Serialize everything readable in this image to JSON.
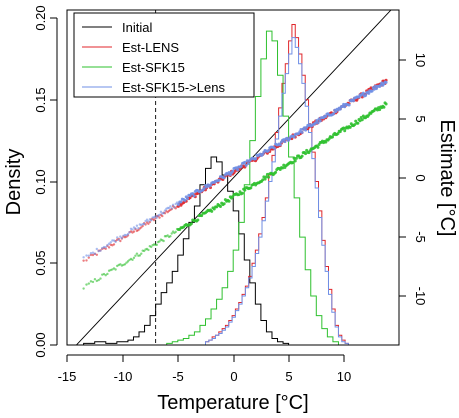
{
  "chart_data": {
    "type": "line",
    "xlabel": "Temperature [°C]",
    "ylabel_left": "Density",
    "ylabel_right": "Estimate [°C]",
    "xlim": [
      -15,
      14.5
    ],
    "ylim_left": [
      0,
      0.2
    ],
    "ylim_right": [
      -10,
      10
    ],
    "xticks": [
      "-15",
      "-10",
      "-5",
      "0",
      "5",
      "10"
    ],
    "yticks_left": [
      "0.00",
      "0.05",
      "0.10",
      "0.15",
      "0.20"
    ],
    "yticks_right": [
      "-10",
      "-5",
      "0",
      "5",
      "10"
    ],
    "reference_vline_x": -7,
    "grid": false,
    "legend_position": "top-left",
    "legend": [
      {
        "name": "Initial",
        "color": "#000000"
      },
      {
        "name": "Est-LENS",
        "color": "#e0262b"
      },
      {
        "name": "Est-SFK15",
        "color": "#2ec02e"
      },
      {
        "name": "Est-SFK15->Lens",
        "color": "#6f8fe6"
      }
    ],
    "histograms": [
      {
        "name": "Initial",
        "color": "#000000",
        "x0": -13.5,
        "bin_width": 0.5,
        "density": [
          0.001,
          0.001,
          0.002,
          0.002,
          0.001,
          0.001,
          0.002,
          0.002,
          0.003,
          0.005,
          0.008,
          0.012,
          0.018,
          0.025,
          0.032,
          0.038,
          0.045,
          0.055,
          0.065,
          0.075,
          0.085,
          0.098,
          0.108,
          0.115,
          0.112,
          0.104,
          0.094,
          0.082,
          0.068,
          0.052,
          0.038,
          0.025,
          0.015,
          0.008,
          0.004,
          0.002,
          0.001
        ]
      },
      {
        "name": "Est-LENS",
        "color": "#e0262b",
        "x0": -2.5,
        "bin_width": 0.3,
        "density": [
          0.002,
          0.003,
          0.005,
          0.006,
          0.008,
          0.01,
          0.012,
          0.015,
          0.018,
          0.022,
          0.026,
          0.031,
          0.036,
          0.042,
          0.05,
          0.058,
          0.068,
          0.078,
          0.09,
          0.104,
          0.116,
          0.13,
          0.145,
          0.16,
          0.172,
          0.186,
          0.196,
          0.188,
          0.178,
          0.165,
          0.15,
          0.135,
          0.118,
          0.1,
          0.082,
          0.064,
          0.048,
          0.034,
          0.022,
          0.012,
          0.006,
          0.003,
          0.001
        ]
      },
      {
        "name": "Est-SFK15",
        "color": "#2ec02e",
        "x0": -6,
        "bin_width": 0.5,
        "density": [
          0.001,
          0.002,
          0.003,
          0.004,
          0.006,
          0.008,
          0.012,
          0.016,
          0.022,
          0.028,
          0.035,
          0.045,
          0.058,
          0.075,
          0.098,
          0.125,
          0.152,
          0.175,
          0.192,
          0.186,
          0.165,
          0.14,
          0.115,
          0.09,
          0.066,
          0.046,
          0.03,
          0.018,
          0.01,
          0.005,
          0.002
        ]
      },
      {
        "name": "Est-SFK15->Lens",
        "color": "#6f8fe6",
        "x0": -2.5,
        "bin_width": 0.3,
        "density": [
          0.002,
          0.003,
          0.004,
          0.006,
          0.007,
          0.009,
          0.011,
          0.014,
          0.017,
          0.021,
          0.025,
          0.03,
          0.035,
          0.041,
          0.048,
          0.056,
          0.066,
          0.076,
          0.088,
          0.1,
          0.112,
          0.126,
          0.14,
          0.154,
          0.166,
          0.178,
          0.188,
          0.182,
          0.172,
          0.16,
          0.146,
          0.13,
          0.114,
          0.096,
          0.078,
          0.061,
          0.045,
          0.031,
          0.02,
          0.011,
          0.005,
          0.002,
          0.001
        ]
      }
    ],
    "estimates": [
      {
        "name": "Est-LENS",
        "color": "#e0262b",
        "x_range": [
          -13.5,
          13.8
        ],
        "intercept": 0.5,
        "slope": 0.56,
        "n_points": 240
      },
      {
        "name": "Est-SFK15",
        "color": "#2ec02e",
        "x_range": [
          -13.5,
          13.8
        ],
        "intercept": -1.6,
        "slope": 0.57,
        "n_points": 240
      },
      {
        "name": "Est-SFK15->Lens",
        "color": "#6f8fe6",
        "x_range": [
          -13.5,
          13.8
        ],
        "intercept": 0.6,
        "slope": 0.55,
        "n_points": 240
      }
    ],
    "identity_line": {
      "x_range": [
        -15,
        14.5
      ],
      "color": "#000000"
    }
  }
}
